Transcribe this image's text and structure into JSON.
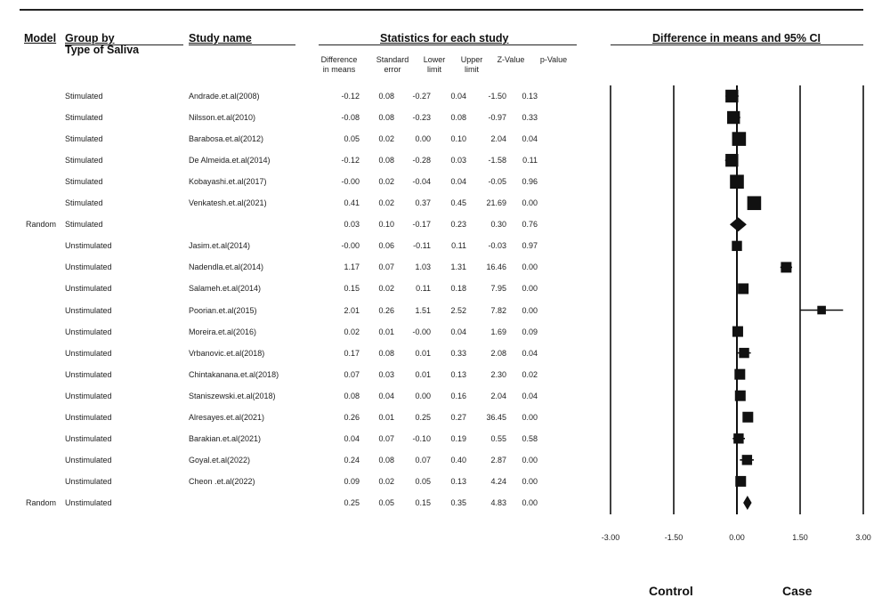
{
  "headers": {
    "model": "Model",
    "group": "Group by",
    "group2": "Type of Saliva",
    "study": "Study name",
    "stats": "Statistics for each study",
    "plot": "Difference in means and 95% CI"
  },
  "columns": [
    "Difference\nin means",
    "Standard\nerror",
    "Lower\nlimit",
    "Upper\nlimit",
    "Z-Value",
    "p-Value"
  ],
  "footer": {
    "left": "Control",
    "right": "Case"
  },
  "chart_data": {
    "type": "forest",
    "xlim": [
      -3.0,
      3.0
    ],
    "x_ticks": [
      "-3.00",
      "-1.50",
      "0.00",
      "1.50",
      "3.00"
    ],
    "rows": [
      {
        "model": "",
        "group": "Stimulated",
        "study": "Andrade.et.al(2008)",
        "diff": "-0.12",
        "se": "0.08",
        "lower": "-0.27",
        "upper": "0.04",
        "z": "-1.50",
        "p": "0.13",
        "kind": "study",
        "weight": 1.4
      },
      {
        "model": "",
        "group": "Stimulated",
        "study": "Nilsson.et.al(2010)",
        "diff": "-0.08",
        "se": "0.08",
        "lower": "-0.23",
        "upper": "0.08",
        "z": "-0.97",
        "p": "0.33",
        "kind": "study",
        "weight": 1.4
      },
      {
        "model": "",
        "group": "Stimulated",
        "study": "Barabosa.et.al(2012)",
        "diff": "0.05",
        "se": "0.02",
        "lower": "0.00",
        "upper": "0.10",
        "z": "2.04",
        "p": "0.04",
        "kind": "study",
        "weight": 1.6
      },
      {
        "model": "",
        "group": "Stimulated",
        "study": "De Almeida.et.al(2014)",
        "diff": "-0.12",
        "se": "0.08",
        "lower": "-0.28",
        "upper": "0.03",
        "z": "-1.58",
        "p": "0.11",
        "kind": "study",
        "weight": 1.4
      },
      {
        "model": "",
        "group": "Stimulated",
        "study": "Kobayashi.et.al(2017)",
        "diff": "-0.00",
        "se": "0.02",
        "lower": "-0.04",
        "upper": "0.04",
        "z": "-0.05",
        "p": "0.96",
        "kind": "study",
        "weight": 1.6
      },
      {
        "model": "",
        "group": "Stimulated",
        "study": "Venkatesh.et.al(2021)",
        "diff": "0.41",
        "se": "0.02",
        "lower": "0.37",
        "upper": "0.45",
        "z": "21.69",
        "p": "0.00",
        "kind": "study",
        "weight": 1.6
      },
      {
        "model": "Random",
        "group": "Stimulated",
        "study": "",
        "diff": "0.03",
        "se": "0.10",
        "lower": "-0.17",
        "upper": "0.23",
        "z": "0.30",
        "p": "0.76",
        "kind": "summary",
        "weight": 1
      },
      {
        "model": "",
        "group": "Unstimulated",
        "study": "Jasim.et.al(2014)",
        "diff": "-0.00",
        "se": "0.06",
        "lower": "-0.11",
        "upper": "0.11",
        "z": "-0.03",
        "p": "0.97",
        "kind": "study",
        "weight": 0.9
      },
      {
        "model": "",
        "group": "Unstimulated",
        "study": "Nadendla.et.al(2014)",
        "diff": "1.17",
        "se": "0.07",
        "lower": "1.03",
        "upper": "1.31",
        "z": "16.46",
        "p": "0.00",
        "kind": "study",
        "weight": 1.0
      },
      {
        "model": "",
        "group": "Unstimulated",
        "study": "Salameh.et.al(2014)",
        "diff": "0.15",
        "se": "0.02",
        "lower": "0.11",
        "upper": "0.18",
        "z": "7.95",
        "p": "0.00",
        "kind": "study",
        "weight": 1.0
      },
      {
        "model": "",
        "group": "Unstimulated",
        "study": "Poorian.et.al(2015)",
        "diff": "2.01",
        "se": "0.26",
        "lower": "1.51",
        "upper": "2.52",
        "z": "7.82",
        "p": "0.00",
        "kind": "study",
        "weight": 0.6
      },
      {
        "model": "",
        "group": "Unstimulated",
        "study": "Moreira.et.al(2016)",
        "diff": "0.02",
        "se": "0.01",
        "lower": "-0.00",
        "upper": "0.04",
        "z": "1.69",
        "p": "0.09",
        "kind": "study",
        "weight": 1.0
      },
      {
        "model": "",
        "group": "Unstimulated",
        "study": "Vrbanovic.et.al(2018)",
        "diff": "0.17",
        "se": "0.08",
        "lower": "0.01",
        "upper": "0.33",
        "z": "2.08",
        "p": "0.04",
        "kind": "study",
        "weight": 0.9
      },
      {
        "model": "",
        "group": "Unstimulated",
        "study": "Chintakanana.et.al(2018)",
        "diff": "0.07",
        "se": "0.03",
        "lower": "0.01",
        "upper": "0.13",
        "z": "2.30",
        "p": "0.02",
        "kind": "study",
        "weight": 1.0
      },
      {
        "model": "",
        "group": "Unstimulated",
        "study": "Staniszewski.et.al(2018)",
        "diff": "0.08",
        "se": "0.04",
        "lower": "0.00",
        "upper": "0.16",
        "z": "2.04",
        "p": "0.04",
        "kind": "study",
        "weight": 1.0
      },
      {
        "model": "",
        "group": "Unstimulated",
        "study": "Alresayes.et.al(2021)",
        "diff": "0.26",
        "se": "0.01",
        "lower": "0.25",
        "upper": "0.27",
        "z": "36.45",
        "p": "0.00",
        "kind": "study",
        "weight": 1.0
      },
      {
        "model": "",
        "group": "Unstimulated",
        "study": "Barakian.et.al(2021)",
        "diff": "0.04",
        "se": "0.07",
        "lower": "-0.10",
        "upper": "0.19",
        "z": "0.55",
        "p": "0.58",
        "kind": "study",
        "weight": 0.9
      },
      {
        "model": "",
        "group": "Unstimulated",
        "study": "Goyal.et.al(2022)",
        "diff": "0.24",
        "se": "0.08",
        "lower": "0.07",
        "upper": "0.40",
        "z": "2.87",
        "p": "0.00",
        "kind": "study",
        "weight": 0.9
      },
      {
        "model": "",
        "group": "Unstimulated",
        "study": "Cheon .et.al(2022)",
        "diff": "0.09",
        "se": "0.02",
        "lower": "0.05",
        "upper": "0.13",
        "z": "4.24",
        "p": "0.00",
        "kind": "study",
        "weight": 1.0
      },
      {
        "model": "Random",
        "group": "Unstimulated",
        "study": "",
        "diff": "0.25",
        "se": "0.05",
        "lower": "0.15",
        "upper": "0.35",
        "z": "4.83",
        "p": "0.00",
        "kind": "summary",
        "weight": 1
      }
    ]
  },
  "colors": {
    "ink": "#111111",
    "rule": "#222222"
  }
}
